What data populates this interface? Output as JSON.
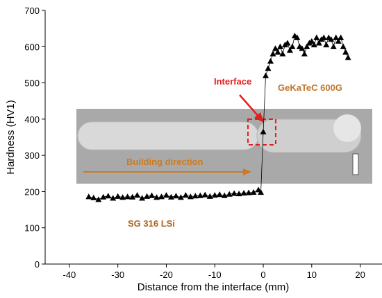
{
  "chart_data": {
    "type": "line",
    "xlabel": "Distance from the interface (mm)",
    "ylabel": "Hardness (HV1)",
    "annotations": [
      "Interface",
      "GeKaTeC 600G",
      "Building direction",
      "SG 316 LSi"
    ],
    "x": [
      -36,
      -35,
      -34,
      -33,
      -32,
      -31,
      -30,
      -29,
      -28,
      -27,
      -26,
      -25,
      -24,
      -23,
      -22,
      -21,
      -20,
      -19,
      -18,
      -17,
      -16,
      -15,
      -14,
      -13,
      -12,
      -11,
      -10,
      -9,
      -8,
      -7,
      -6,
      -5,
      -4,
      -3,
      -2,
      -1,
      -0.5,
      0,
      0.5,
      1,
      1.5,
      2,
      2.5,
      3,
      3.5,
      4,
      4.5,
      5,
      5.5,
      6,
      6.5,
      7,
      7.5,
      8,
      8.5,
      9,
      9.5,
      10,
      10.5,
      11,
      11.5,
      12,
      12.5,
      13,
      13.5,
      14,
      14.5,
      15,
      15.5,
      16,
      16.5,
      17,
      17.5
    ],
    "series": [
      {
        "color": "#000000",
        "values": [
          186,
          183,
          178,
          185,
          188,
          182,
          187,
          184,
          186,
          185,
          190,
          182,
          187,
          189,
          184,
          186,
          190,
          185,
          188,
          184,
          190,
          186,
          188,
          189,
          191,
          187,
          190,
          192,
          189,
          193,
          195,
          194,
          196,
          197,
          198,
          205,
          198,
          365,
          520,
          540,
          560,
          580,
          595,
          585,
          600,
          580,
          605,
          610,
          590,
          600,
          630,
          625,
          600,
          595,
          580,
          600,
          610,
          615,
          605,
          625,
          610,
          620,
          625,
          605,
          625,
          620,
          600,
          625,
          615,
          625,
          600,
          585,
          570
        ]
      }
    ],
    "xlim": [
      -45,
      24.5
    ],
    "xticks": [
      -40,
      -30,
      -20,
      -10,
      0,
      10,
      20
    ],
    "ylim": [
      0,
      700
    ],
    "yticks": [
      0,
      100,
      200,
      300,
      400,
      500,
      600,
      700
    ]
  }
}
